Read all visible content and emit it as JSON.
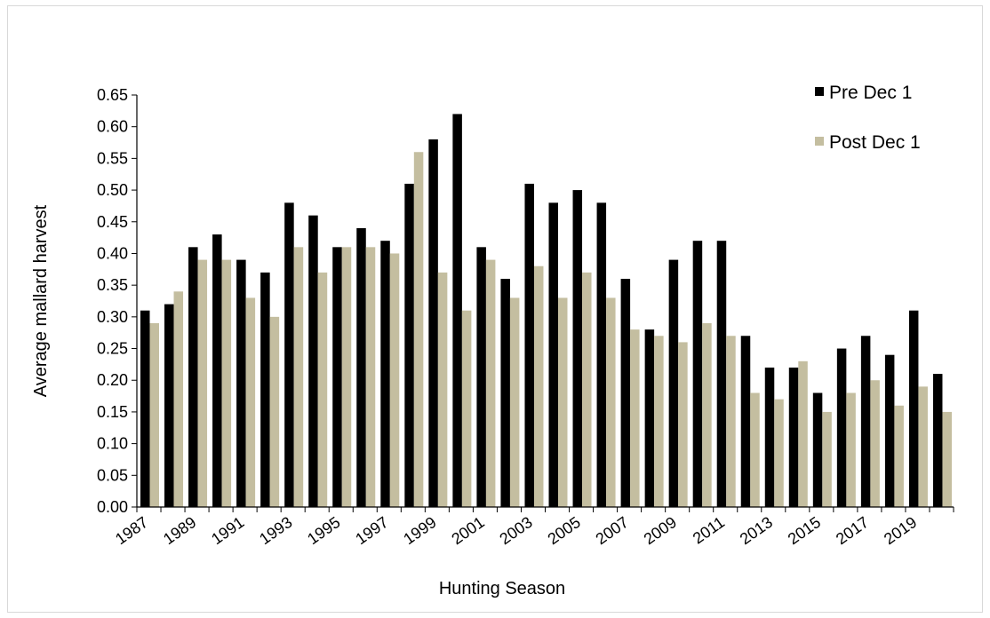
{
  "chart_data": {
    "type": "bar",
    "title": "",
    "xlabel": "Hunting Season",
    "ylabel": "Average mallard harvest",
    "ylim": [
      0,
      0.65
    ],
    "y_ticks": [
      "0.00",
      "0.05",
      "0.10",
      "0.15",
      "0.20",
      "0.25",
      "0.30",
      "0.35",
      "0.40",
      "0.45",
      "0.50",
      "0.55",
      "0.60",
      "0.65"
    ],
    "categories": [
      1987,
      1988,
      1989,
      1990,
      1991,
      1992,
      1993,
      1994,
      1995,
      1996,
      1997,
      1998,
      1999,
      2000,
      2001,
      2002,
      2003,
      2004,
      2005,
      2006,
      2007,
      2008,
      2009,
      2010,
      2011,
      2012,
      2013,
      2014,
      2015,
      2016,
      2017,
      2018,
      2019,
      2020
    ],
    "x_tick_labels": [
      "1987",
      "1989",
      "1991",
      "1993",
      "1995",
      "1997",
      "1999",
      "2001",
      "2003",
      "2005",
      "2007",
      "2009",
      "2011",
      "2013",
      "2015",
      "2017",
      "2019"
    ],
    "grid": false,
    "legend_position": "top-right",
    "series": [
      {
        "name": "Pre Dec 1",
        "color": "#000000",
        "values": [
          0.31,
          0.32,
          0.41,
          0.43,
          0.39,
          0.37,
          0.48,
          0.46,
          0.41,
          0.44,
          0.42,
          0.51,
          0.58,
          0.62,
          0.41,
          0.36,
          0.51,
          0.48,
          0.5,
          0.48,
          0.36,
          0.28,
          0.39,
          0.42,
          0.42,
          0.27,
          0.22,
          0.22,
          0.18,
          0.25,
          0.27,
          0.24,
          0.31,
          0.21
        ]
      },
      {
        "name": "Post Dec 1",
        "color": "#c4bea0",
        "values": [
          0.29,
          0.34,
          0.39,
          0.39,
          0.33,
          0.3,
          0.41,
          0.37,
          0.41,
          0.41,
          0.4,
          0.56,
          0.37,
          0.31,
          0.39,
          0.33,
          0.38,
          0.33,
          0.37,
          0.33,
          0.28,
          0.27,
          0.26,
          0.29,
          0.27,
          0.18,
          0.17,
          0.23,
          0.15,
          0.18,
          0.2,
          0.16,
          0.19,
          0.15
        ]
      }
    ]
  }
}
